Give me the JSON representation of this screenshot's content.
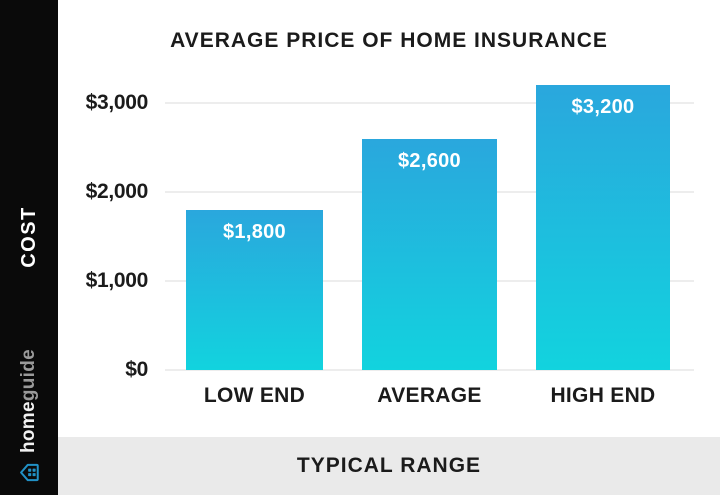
{
  "sidebar": {
    "axis_label": "COST",
    "brand": {
      "name_primary": "home",
      "name_secondary": "guide",
      "icon": "house-grid-icon",
      "icon_color": "#2191c6"
    }
  },
  "chart_data": {
    "type": "bar",
    "title": "AVERAGE PRICE OF HOME INSURANCE",
    "categories": [
      "LOW END",
      "AVERAGE",
      "HIGH END"
    ],
    "values": [
      1800,
      2600,
      3200
    ],
    "value_labels": [
      "$1,800",
      "$2,600",
      "$3,200"
    ],
    "ylabel": "COST",
    "xlabel": "TYPICAL RANGE",
    "ylim": [
      0,
      3400
    ],
    "yticks": [
      {
        "value": 3000,
        "label": "$3,000"
      },
      {
        "value": 2000,
        "label": "$2,000"
      },
      {
        "value": 1000,
        "label": "$1,000"
      },
      {
        "value": 0,
        "label": "$0"
      }
    ],
    "grid": true,
    "legend": "none",
    "bar_gradient_top": "#2aa7dd",
    "bar_gradient_bottom": "#12d3de",
    "gridline_color": "#ededed"
  },
  "banner": {
    "label": "TYPICAL RANGE"
  },
  "colors": {
    "sidebar_bg": "#0a0a0a",
    "banner_bg": "#eaeaea",
    "text": "#1b1b1b",
    "bar_label": "#ffffff"
  }
}
